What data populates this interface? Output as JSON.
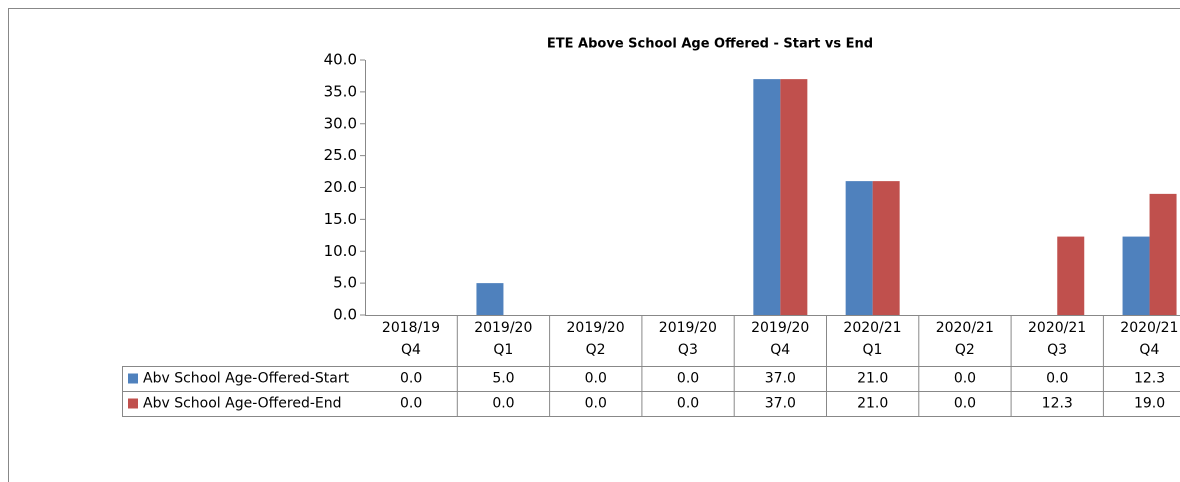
{
  "chart_data": {
    "type": "bar",
    "title": "ETE Above School Age Offered - Start vs End",
    "categories": [
      "2018/19\nQ4",
      "2019/20\nQ1",
      "2019/20\nQ2",
      "2019/20\nQ3",
      "2019/20\nQ4",
      "2020/21\nQ1",
      "2020/21\nQ2",
      "2020/21\nQ3",
      "2020/21\nQ4"
    ],
    "series": [
      {
        "name": "Abv School Age-Offered-Start",
        "color": "#4f81bd",
        "values": [
          0,
          5,
          0,
          0,
          37,
          21,
          0,
          0,
          12.3
        ],
        "value_labels": [
          "0.0",
          "5.0",
          "0.0",
          "0.0",
          "37.0",
          "21.0",
          "0.0",
          "0.0",
          "12.3"
        ]
      },
      {
        "name": "Abv School Age-Offered-End",
        "color": "#c0504d",
        "values": [
          0,
          0,
          0,
          0,
          37,
          21,
          0,
          12.3,
          19
        ],
        "value_labels": [
          "0.0",
          "0.0",
          "0.0",
          "0.0",
          "37.0",
          "21.0",
          "0.0",
          "12.3",
          "19.0"
        ]
      }
    ],
    "ylim": [
      0,
      40
    ],
    "yticks": [
      {
        "value": 0,
        "label": "0.0"
      },
      {
        "value": 5,
        "label": "5.0"
      },
      {
        "value": 10,
        "label": "10.0"
      },
      {
        "value": 15,
        "label": "15.0"
      },
      {
        "value": 20,
        "label": "20.0"
      },
      {
        "value": 25,
        "label": "25.0"
      },
      {
        "value": 30,
        "label": "30.0"
      },
      {
        "value": 35,
        "label": "35.0"
      },
      {
        "value": 40,
        "label": "40.0"
      }
    ],
    "grid": false
  }
}
